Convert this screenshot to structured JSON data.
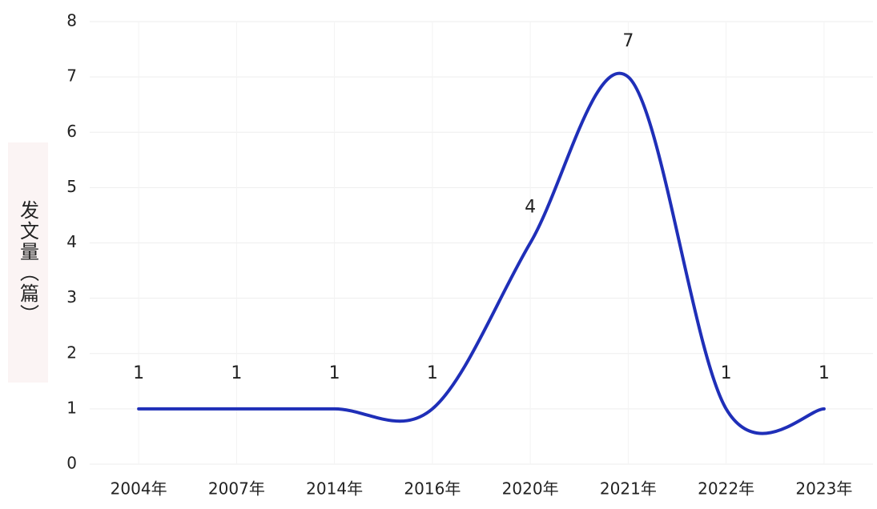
{
  "chart_data": {
    "type": "line",
    "y_label": "发文量（篇）",
    "categories": [
      "2004年",
      "2007年",
      "2014年",
      "2016年",
      "2020年",
      "2021年",
      "2022年",
      "2023年"
    ],
    "series": [
      {
        "name": "发文量",
        "color": "#1f2fb8",
        "values": [
          1,
          1,
          1,
          1,
          4,
          7,
          1,
          1
        ]
      }
    ],
    "ylim": [
      0,
      8
    ],
    "yticks": [
      0,
      1,
      2,
      3,
      4,
      5,
      6,
      7,
      8
    ],
    "grid": true,
    "smooth": true,
    "data_labels": true
  }
}
